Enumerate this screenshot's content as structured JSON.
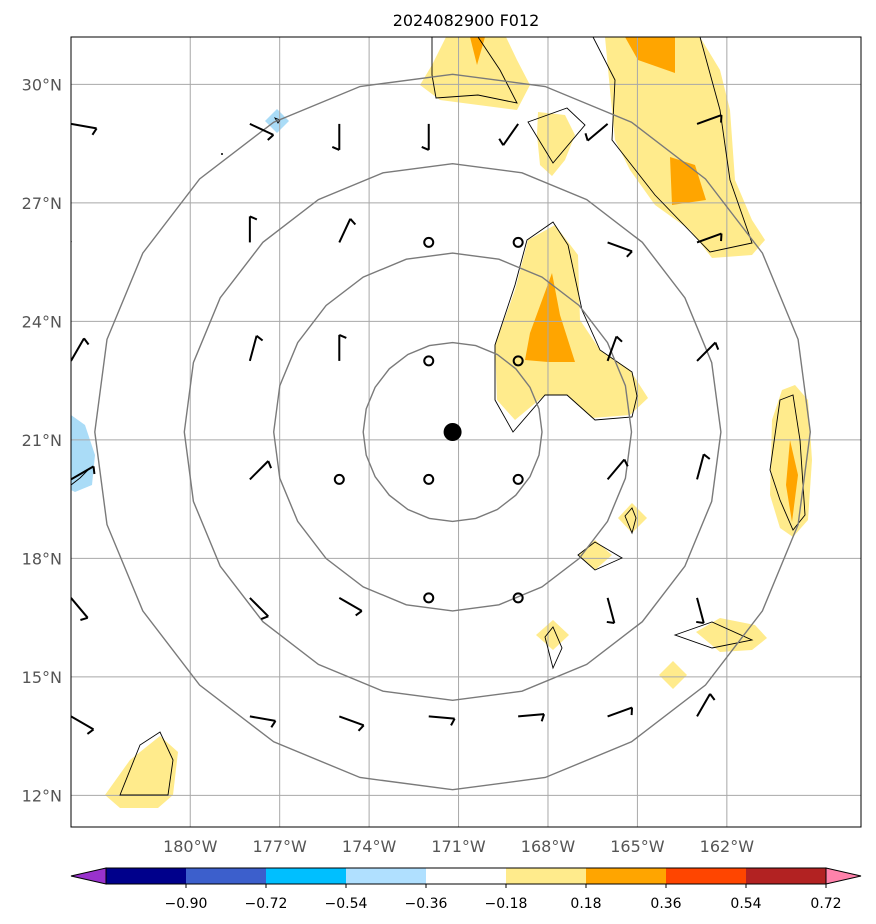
{
  "title": "2024082900 F012",
  "map": {
    "lon_range": [
      -184,
      -157.5
    ],
    "lat_range": [
      11.2,
      31.2
    ],
    "lon_ticks": [
      {
        "value": -180,
        "label": "180°W"
      },
      {
        "value": -177,
        "label": "177°W"
      },
      {
        "value": -174,
        "label": "174°W"
      },
      {
        "value": -171,
        "label": "171°W"
      },
      {
        "value": -168,
        "label": "168°W"
      },
      {
        "value": -165,
        "label": "165°W"
      },
      {
        "value": -162,
        "label": "162°W"
      }
    ],
    "lat_ticks": [
      {
        "value": 12,
        "label": "12°N"
      },
      {
        "value": 15,
        "label": "15°N"
      },
      {
        "value": 18,
        "label": "18°N"
      },
      {
        "value": 21,
        "label": "21°N"
      },
      {
        "value": 24,
        "label": "24°N"
      },
      {
        "value": 27,
        "label": "27°N"
      },
      {
        "value": 30,
        "label": "30°N"
      }
    ],
    "storm_center": {
      "lon": -171.2,
      "lat": 21.2
    },
    "range_rings_deg": [
      3,
      6,
      9,
      12
    ],
    "colors": {
      "low": "#ffeb8c",
      "mid": "#ffa500",
      "neg_light": "#aadcf7"
    }
  },
  "colorbar": {
    "ticks": [
      "−0.90",
      "−0.72",
      "−0.54",
      "−0.36",
      "−0.18",
      "0.18",
      "0.36",
      "0.54",
      "0.72",
      "0.90"
    ],
    "colors": [
      "#9932cc",
      "#00008b",
      "#3c5fcc",
      "#00bfff",
      "#b0e0ff",
      "#ffffff",
      "#ffeb8c",
      "#ffa500",
      "#ff4500",
      "#b22222",
      "#ff82ab"
    ]
  },
  "calm_points": [
    {
      "lon": -172,
      "lat": 26
    },
    {
      "lon": -169,
      "lat": 26
    },
    {
      "lon": -172,
      "lat": 23
    },
    {
      "lon": -169,
      "lat": 23
    },
    {
      "lon": -175,
      "lat": 20
    },
    {
      "lon": -172,
      "lat": 20
    },
    {
      "lon": -169,
      "lat": 20
    },
    {
      "lon": -172,
      "lat": 17
    },
    {
      "lon": -169,
      "lat": 17
    }
  ],
  "barbs": [
    {
      "lon": -184,
      "lat": 29,
      "angle": 100
    },
    {
      "lon": -178,
      "lat": 29,
      "angle": 115
    },
    {
      "lon": -175,
      "lat": 29,
      "angle": 180
    },
    {
      "lon": -172,
      "lat": 29,
      "angle": 180
    },
    {
      "lon": -169,
      "lat": 29,
      "angle": 215
    },
    {
      "lon": -166,
      "lat": 29,
      "angle": 230
    },
    {
      "lon": -163,
      "lat": 29,
      "angle": 70
    },
    {
      "lon": -184,
      "lat": 26,
      "angle": 335
    },
    {
      "lon": -178,
      "lat": 26,
      "angle": 0
    },
    {
      "lon": -175,
      "lat": 26,
      "angle": 25
    },
    {
      "lon": -166,
      "lat": 26,
      "angle": 110
    },
    {
      "lon": -163,
      "lat": 26,
      "angle": 70
    },
    {
      "lon": -184,
      "lat": 23,
      "angle": 30
    },
    {
      "lon": -178,
      "lat": 23,
      "angle": 15
    },
    {
      "lon": -175,
      "lat": 23,
      "angle": 0
    },
    {
      "lon": -166,
      "lat": 23,
      "angle": 20
    },
    {
      "lon": -163,
      "lat": 23,
      "angle": 45
    },
    {
      "lon": -184,
      "lat": 20,
      "angle": 60
    },
    {
      "lon": -178,
      "lat": 20,
      "angle": 45
    },
    {
      "lon": -166,
      "lat": 20,
      "angle": 40
    },
    {
      "lon": -163,
      "lat": 20,
      "angle": 15
    },
    {
      "lon": -184,
      "lat": 17,
      "angle": 140
    },
    {
      "lon": -178,
      "lat": 17,
      "angle": 135
    },
    {
      "lon": -175,
      "lat": 17,
      "angle": 120
    },
    {
      "lon": -166,
      "lat": 17,
      "angle": 165
    },
    {
      "lon": -163,
      "lat": 17,
      "angle": 165
    },
    {
      "lon": -184,
      "lat": 14,
      "angle": 120
    },
    {
      "lon": -178,
      "lat": 14,
      "angle": 100
    },
    {
      "lon": -175,
      "lat": 14,
      "angle": 110
    },
    {
      "lon": -172,
      "lat": 14,
      "angle": 95
    },
    {
      "lon": -169,
      "lat": 14,
      "angle": 85
    },
    {
      "lon": -166,
      "lat": 14,
      "angle": 70
    },
    {
      "lon": -163,
      "lat": 14,
      "angle": 30
    }
  ]
}
